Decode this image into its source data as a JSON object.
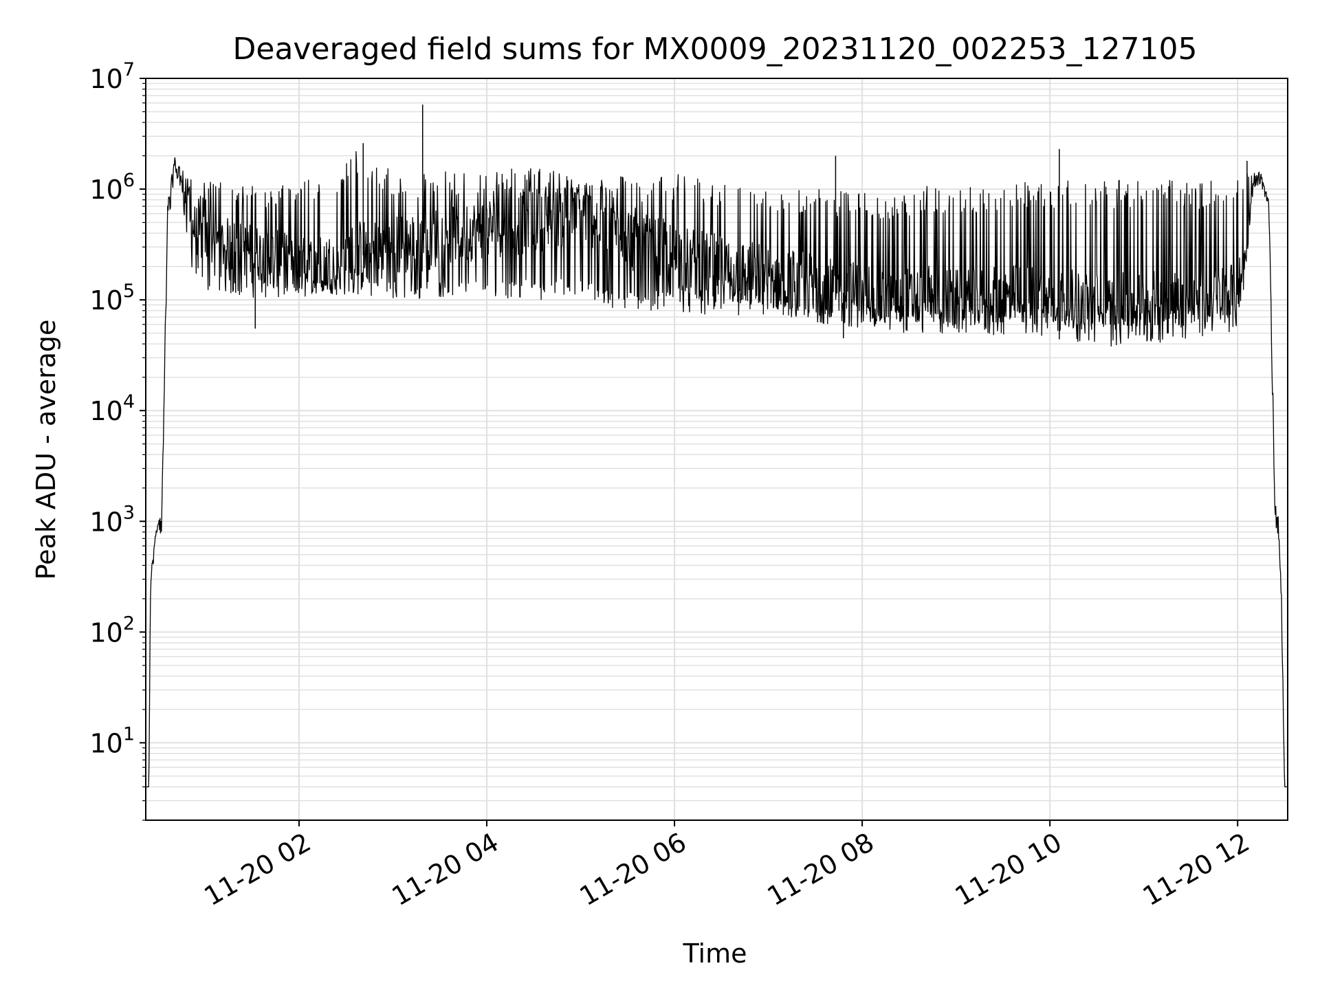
{
  "chart_data": {
    "type": "line",
    "title": "Deaveraged field sums for MX0009_20231120_002253_127105",
    "xlabel": "Time",
    "ylabel": "Peak ADU - average",
    "yscale": "log",
    "ylim": [
      2,
      10000000
    ],
    "xlim": [
      "2023-11-20 00:22",
      "2023-11-20 12:32"
    ],
    "grid": true,
    "legend": "none",
    "line_color": "#000000",
    "grid_color": "#e0e0e0",
    "x_ticks": [
      {
        "label": "11-20 02",
        "value": "2023-11-20 02:00"
      },
      {
        "label": "11-20 04",
        "value": "2023-11-20 04:00"
      },
      {
        "label": "11-20 06",
        "value": "2023-11-20 06:00"
      },
      {
        "label": "11-20 08",
        "value": "2023-11-20 08:00"
      },
      {
        "label": "11-20 10",
        "value": "2023-11-20 10:00"
      },
      {
        "label": "11-20 12",
        "value": "2023-11-20 12:00"
      }
    ],
    "y_ticks": [
      {
        "base": "10",
        "exp": "1",
        "value": 10
      },
      {
        "base": "10",
        "exp": "2",
        "value": 100
      },
      {
        "base": "10",
        "exp": "3",
        "value": 1000
      },
      {
        "base": "10",
        "exp": "4",
        "value": 10000
      },
      {
        "base": "10",
        "exp": "5",
        "value": 100000
      },
      {
        "base": "10",
        "exp": "6",
        "value": 1000000
      },
      {
        "base": "10",
        "exp": "7",
        "value": 10000000
      }
    ],
    "series": [
      {
        "x": [
          "2023-11-20 00:22",
          "2023-11-20 00:24",
          "2023-11-20 00:25",
          "2023-11-20 00:26",
          "2023-11-20 00:28",
          "2023-11-20 00:30",
          "2023-11-20 00:32",
          "2023-11-20 00:34",
          "2023-11-20 00:36",
          "2023-11-20 00:40",
          "2023-11-20 00:45",
          "2023-11-20 00:50",
          "2023-11-20 01:00",
          "2023-11-20 01:20",
          "2023-11-20 01:40",
          "2023-11-20 02:00",
          "2023-11-20 02:20",
          "2023-11-20 02:40",
          "2023-11-20 03:00",
          "2023-11-20 03:20",
          "2023-11-20 03:40",
          "2023-11-20 04:00",
          "2023-11-20 04:20",
          "2023-11-20 04:40",
          "2023-11-20 05:00",
          "2023-11-20 05:20",
          "2023-11-20 05:40",
          "2023-11-20 06:00",
          "2023-11-20 06:20",
          "2023-11-20 06:40",
          "2023-11-20 07:00",
          "2023-11-20 07:20",
          "2023-11-20 07:40",
          "2023-11-20 08:00",
          "2023-11-20 08:20",
          "2023-11-20 08:40",
          "2023-11-20 09:00",
          "2023-11-20 09:20",
          "2023-11-20 09:40",
          "2023-11-20 10:00",
          "2023-11-20 10:20",
          "2023-11-20 10:40",
          "2023-11-20 11:00",
          "2023-11-20 11:20",
          "2023-11-20 11:40",
          "2023-11-20 12:00",
          "2023-11-20 12:05",
          "2023-11-20 12:10",
          "2023-11-20 12:15",
          "2023-11-20 12:20",
          "2023-11-20 12:22",
          "2023-11-20 12:24",
          "2023-11-20 12:26",
          "2023-11-20 12:28",
          "2023-11-20 12:30",
          "2023-11-20 12:32"
        ],
        "y": [
          4,
          4,
          250,
          400,
          700,
          1000,
          800,
          20000,
          600000,
          1500000,
          1200000,
          500000,
          350000,
          300000,
          250000,
          200000,
          220000,
          250000,
          300000,
          350000,
          400000,
          450000,
          500000,
          550000,
          600000,
          500000,
          300000,
          250000,
          200000,
          180000,
          160000,
          140000,
          120000,
          110000,
          100000,
          100000,
          95000,
          95000,
          100000,
          100000,
          85000,
          80000,
          85000,
          90000,
          95000,
          110000,
          250000,
          1200000,
          1300000,
          700000,
          30000,
          1200,
          900,
          200,
          4,
          4
        ],
        "upper": [
          4,
          4,
          250,
          400,
          700,
          1200,
          1000,
          30000,
          800000,
          2000000,
          1500000,
          1300000,
          1200000,
          1100000,
          1100000,
          1200000,
          1300000,
          2600000,
          1400000,
          1400000,
          1500000,
          1500000,
          1600000,
          1500000,
          1400000,
          1400000,
          1300000,
          1400000,
          1300000,
          1200000,
          1100000,
          1100000,
          1000000,
          1000000,
          900000,
          1100000,
          1000000,
          1100000,
          1200000,
          1200000,
          1200000,
          1200000,
          1300000,
          1200000,
          1200000,
          1300000,
          1400000,
          1500000,
          1400000,
          800000,
          40000,
          1500,
          1100,
          300,
          4,
          4
        ],
        "lower": [
          4,
          4,
          200,
          300,
          600,
          800,
          700,
          15000,
          400000,
          1200000,
          1000000,
          180000,
          120000,
          110000,
          100000,
          100000,
          110000,
          110000,
          100000,
          100000,
          110000,
          110000,
          100000,
          100000,
          110000,
          80000,
          80000,
          80000,
          70000,
          70000,
          70000,
          60000,
          60000,
          60000,
          60000,
          60000,
          60000,
          60000,
          60000,
          60000,
          55000,
          55000,
          55000,
          60000,
          60000,
          70000,
          200000,
          1000000,
          1100000,
          600000,
          20000,
          900,
          700,
          150,
          4,
          4
        ]
      }
    ],
    "spikes": [
      {
        "x": "2023-11-20 01:32",
        "y": 55000,
        "label": ""
      },
      {
        "x": "2023-11-20 02:41",
        "y": 2600000,
        "label": ""
      },
      {
        "x": "2023-11-20 03:19",
        "y": 5800000,
        "label": ""
      },
      {
        "x": "2023-11-20 07:43",
        "y": 2000000,
        "label": ""
      },
      {
        "x": "2023-11-20 07:48",
        "y": 45000,
        "label": ""
      },
      {
        "x": "2023-11-20 10:06",
        "y": 2300000,
        "label": ""
      },
      {
        "x": "2023-11-20 10:06",
        "y": 44000,
        "label": ""
      },
      {
        "x": "2023-11-20 12:06",
        "y": 1800000,
        "label": ""
      }
    ]
  }
}
